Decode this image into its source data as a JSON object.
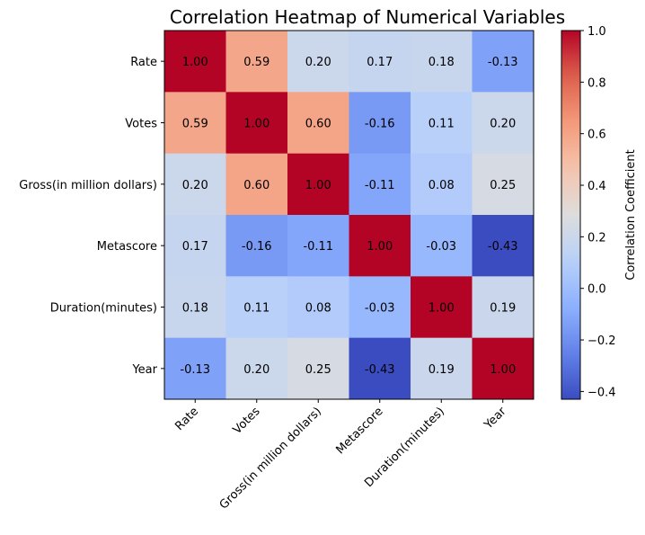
{
  "chart_data": {
    "type": "heatmap",
    "title": "Correlation Heatmap of Numerical Variables",
    "x_categories": [
      "Rate",
      "Votes",
      "Gross(in million dollars)",
      "Metascore",
      "Duration(minutes)",
      "Year"
    ],
    "y_categories": [
      "Rate",
      "Votes",
      "Gross(in million dollars)",
      "Metascore",
      "Duration(minutes)",
      "Year"
    ],
    "values": [
      [
        1.0,
        0.59,
        0.2,
        0.17,
        0.18,
        -0.13
      ],
      [
        0.59,
        1.0,
        0.6,
        -0.16,
        0.11,
        0.2
      ],
      [
        0.2,
        0.6,
        1.0,
        -0.11,
        0.08,
        0.25
      ],
      [
        0.17,
        -0.16,
        -0.11,
        1.0,
        -0.03,
        -0.43
      ],
      [
        0.18,
        0.11,
        0.08,
        -0.03,
        1.0,
        0.19
      ],
      [
        -0.13,
        0.2,
        0.25,
        -0.43,
        0.19,
        1.0
      ]
    ],
    "value_labels": [
      [
        "1.00",
        "0.59",
        "0.20",
        "0.17",
        "0.18",
        "-0.13"
      ],
      [
        "0.59",
        "1.00",
        "0.60",
        "-0.16",
        "0.11",
        "0.20"
      ],
      [
        "0.20",
        "0.60",
        "1.00",
        "-0.11",
        "0.08",
        "0.25"
      ],
      [
        "0.17",
        "-0.16",
        "-0.11",
        "1.00",
        "-0.03",
        "-0.43"
      ],
      [
        "0.18",
        "0.11",
        "0.08",
        "-0.03",
        "1.00",
        "0.19"
      ],
      [
        "-0.13",
        "0.20",
        "0.25",
        "-0.43",
        "0.19",
        "1.00"
      ]
    ],
    "colormap": "coolwarm",
    "vmin": -0.43,
    "vmax": 1.0,
    "colorbar": {
      "label": "Correlation Coefficient",
      "ticks": [
        -0.4,
        -0.2,
        0.0,
        0.2,
        0.4,
        0.6,
        0.8,
        1.0
      ],
      "tick_labels": [
        "−0.4",
        "−0.2",
        "0.0",
        "0.2",
        "0.4",
        "0.6",
        "0.8",
        "1.0"
      ]
    },
    "grid": false
  }
}
